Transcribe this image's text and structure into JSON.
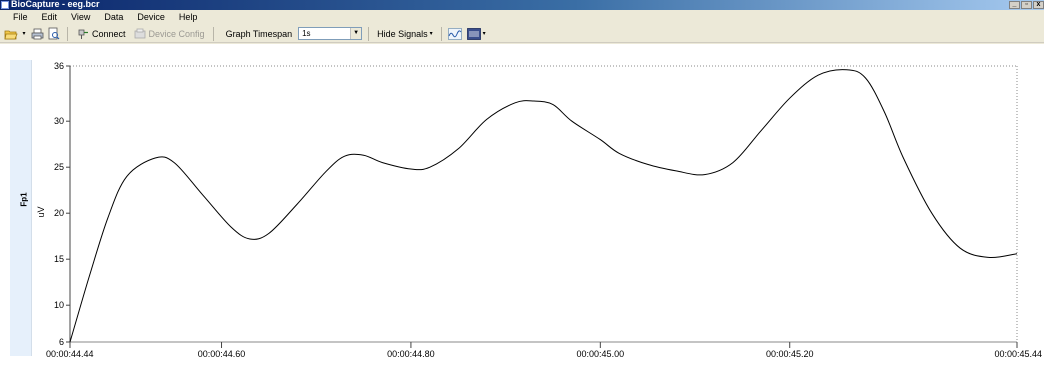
{
  "window": {
    "title": "BioCapture - eeg.bcr",
    "controls": [
      "_",
      "▫",
      "x"
    ]
  },
  "menu": [
    "File",
    "Edit",
    "View",
    "Data",
    "Device",
    "Help"
  ],
  "toolbar": {
    "connect_label": "Connect",
    "device_config_label": "Device Config",
    "graph_timespan_label": "Graph Timespan",
    "graph_timespan_value": "1s",
    "hide_signals_label": "Hide Signals"
  },
  "channel": {
    "name": "Fp1",
    "unit": "uV"
  },
  "chart_data": {
    "type": "line",
    "ylabel": "uV",
    "ylim": [
      6,
      36
    ],
    "yticks": [
      6,
      10,
      15,
      20,
      25,
      30,
      36
    ],
    "xticks": [
      "00:00:44.44",
      "00:00:44.60",
      "00:00:44.80",
      "00:00:45.00",
      "00:00:45.20",
      "00:00:45.44"
    ],
    "x_range_seconds": [
      44.44,
      45.44
    ],
    "series": [
      {
        "x": [
          44.44,
          44.46,
          44.48,
          44.5,
          44.53,
          44.55,
          44.58,
          44.61,
          44.63,
          44.65,
          44.68,
          44.71,
          44.73,
          44.75,
          44.77,
          44.8,
          44.82,
          44.85,
          44.88,
          44.91,
          44.93,
          44.95,
          44.97,
          45.0,
          45.02,
          45.05,
          45.08,
          45.11,
          45.14,
          45.17,
          45.2,
          45.23,
          45.26,
          45.28,
          45.3,
          45.32,
          45.35,
          45.38,
          45.41,
          45.44
        ],
        "y": [
          6,
          13,
          19.5,
          24,
          26,
          25.5,
          22,
          18.5,
          17.2,
          17.8,
          21,
          24.5,
          26.2,
          26.3,
          25.5,
          24.8,
          25,
          27,
          30.2,
          32,
          32.2,
          31.8,
          30,
          28,
          26.5,
          25.3,
          24.6,
          24.2,
          25.5,
          29,
          32.5,
          35,
          35.6,
          34.7,
          31,
          26,
          20,
          16.2,
          15.2,
          15.6
        ]
      }
    ]
  }
}
